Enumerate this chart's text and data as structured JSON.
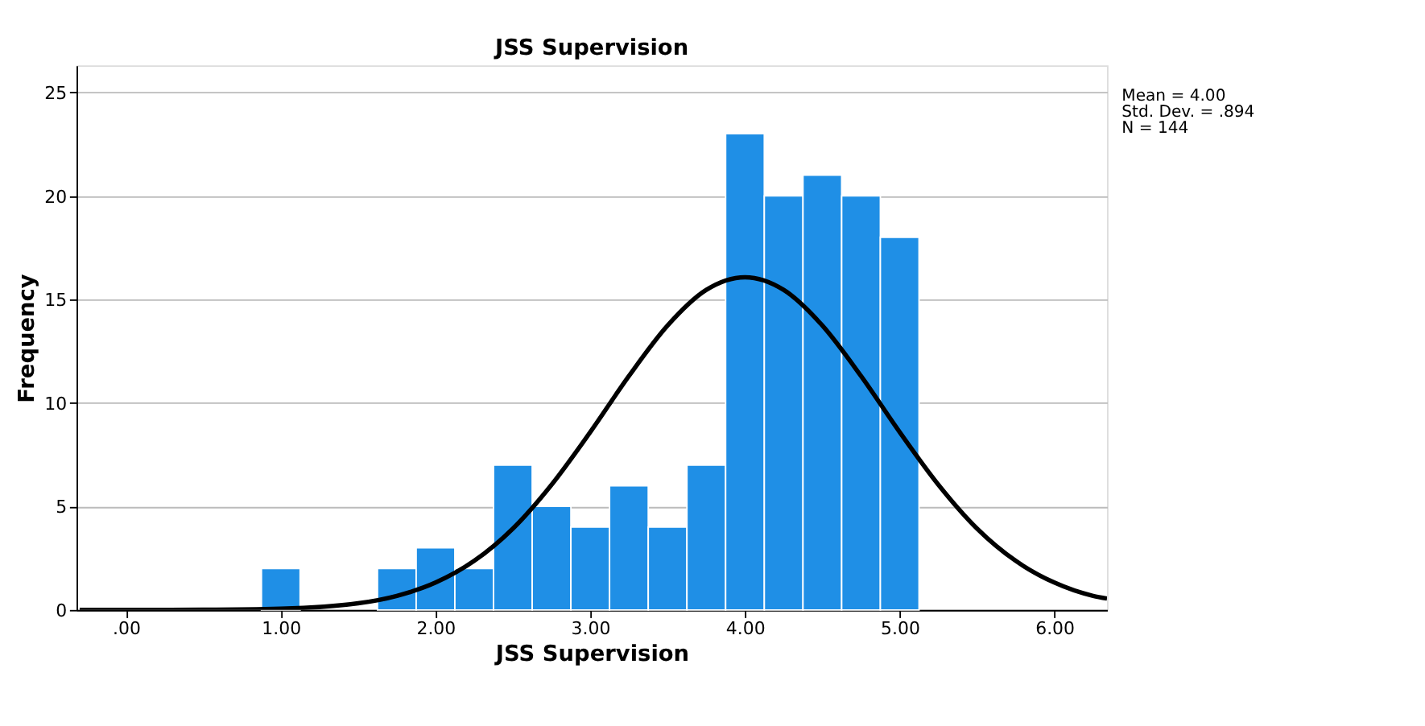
{
  "chart_data": {
    "type": "histogram",
    "title": "JSS Supervision",
    "xlabel": "JSS Supervision",
    "ylabel": "Frequency",
    "bins": [
      0.875,
      1.125,
      1.375,
      1.625,
      1.875,
      2.125,
      2.375,
      2.625,
      2.875,
      3.125,
      3.375,
      3.625,
      3.875,
      4.125,
      4.375,
      4.625,
      4.875,
      5.125
    ],
    "values": [
      2,
      0,
      0,
      2,
      3,
      2,
      7,
      5,
      4,
      6,
      4,
      7,
      23,
      20,
      21,
      20,
      18
    ],
    "color": "#1f8fe6",
    "series": [
      {
        "type": "line",
        "color": "#000000",
        "x": [
          -0.3,
          0,
          0.5,
          1,
          1.5,
          1.75,
          2,
          2.25,
          2.5,
          2.75,
          3,
          3.25,
          3.5,
          3.75,
          4,
          4.25,
          4.5,
          4.75,
          5,
          5.25,
          5.5,
          5.75,
          6,
          6.25,
          6.34
        ],
        "values": [
          0,
          0,
          0.01,
          0.06,
          0.32,
          0.68,
          1.32,
          2.37,
          3.93,
          6.05,
          8.59,
          11.3,
          13.74,
          15.46,
          16.07,
          15.46,
          13.74,
          11.3,
          8.59,
          6.05,
          3.93,
          2.37,
          1.32,
          0.68,
          0.55
        ]
      }
    ],
    "xlim": [
      -0.32,
      6.34
    ],
    "ylim": [
      0,
      26.3
    ],
    "xticks": [
      {
        "value": 0,
        "label": ".00"
      },
      {
        "value": 1,
        "label": "1.00"
      },
      {
        "value": 2,
        "label": "2.00"
      },
      {
        "value": 3,
        "label": "3.00"
      },
      {
        "value": 4,
        "label": "4.00"
      },
      {
        "value": 5,
        "label": "5.00"
      },
      {
        "value": 6,
        "label": "6.00"
      }
    ],
    "yticks": [
      0,
      5,
      10,
      15,
      20,
      25
    ],
    "grid": "y",
    "annotations": [
      "Mean = 4.00",
      "Std. Dev. = .894",
      "N = 144"
    ]
  }
}
